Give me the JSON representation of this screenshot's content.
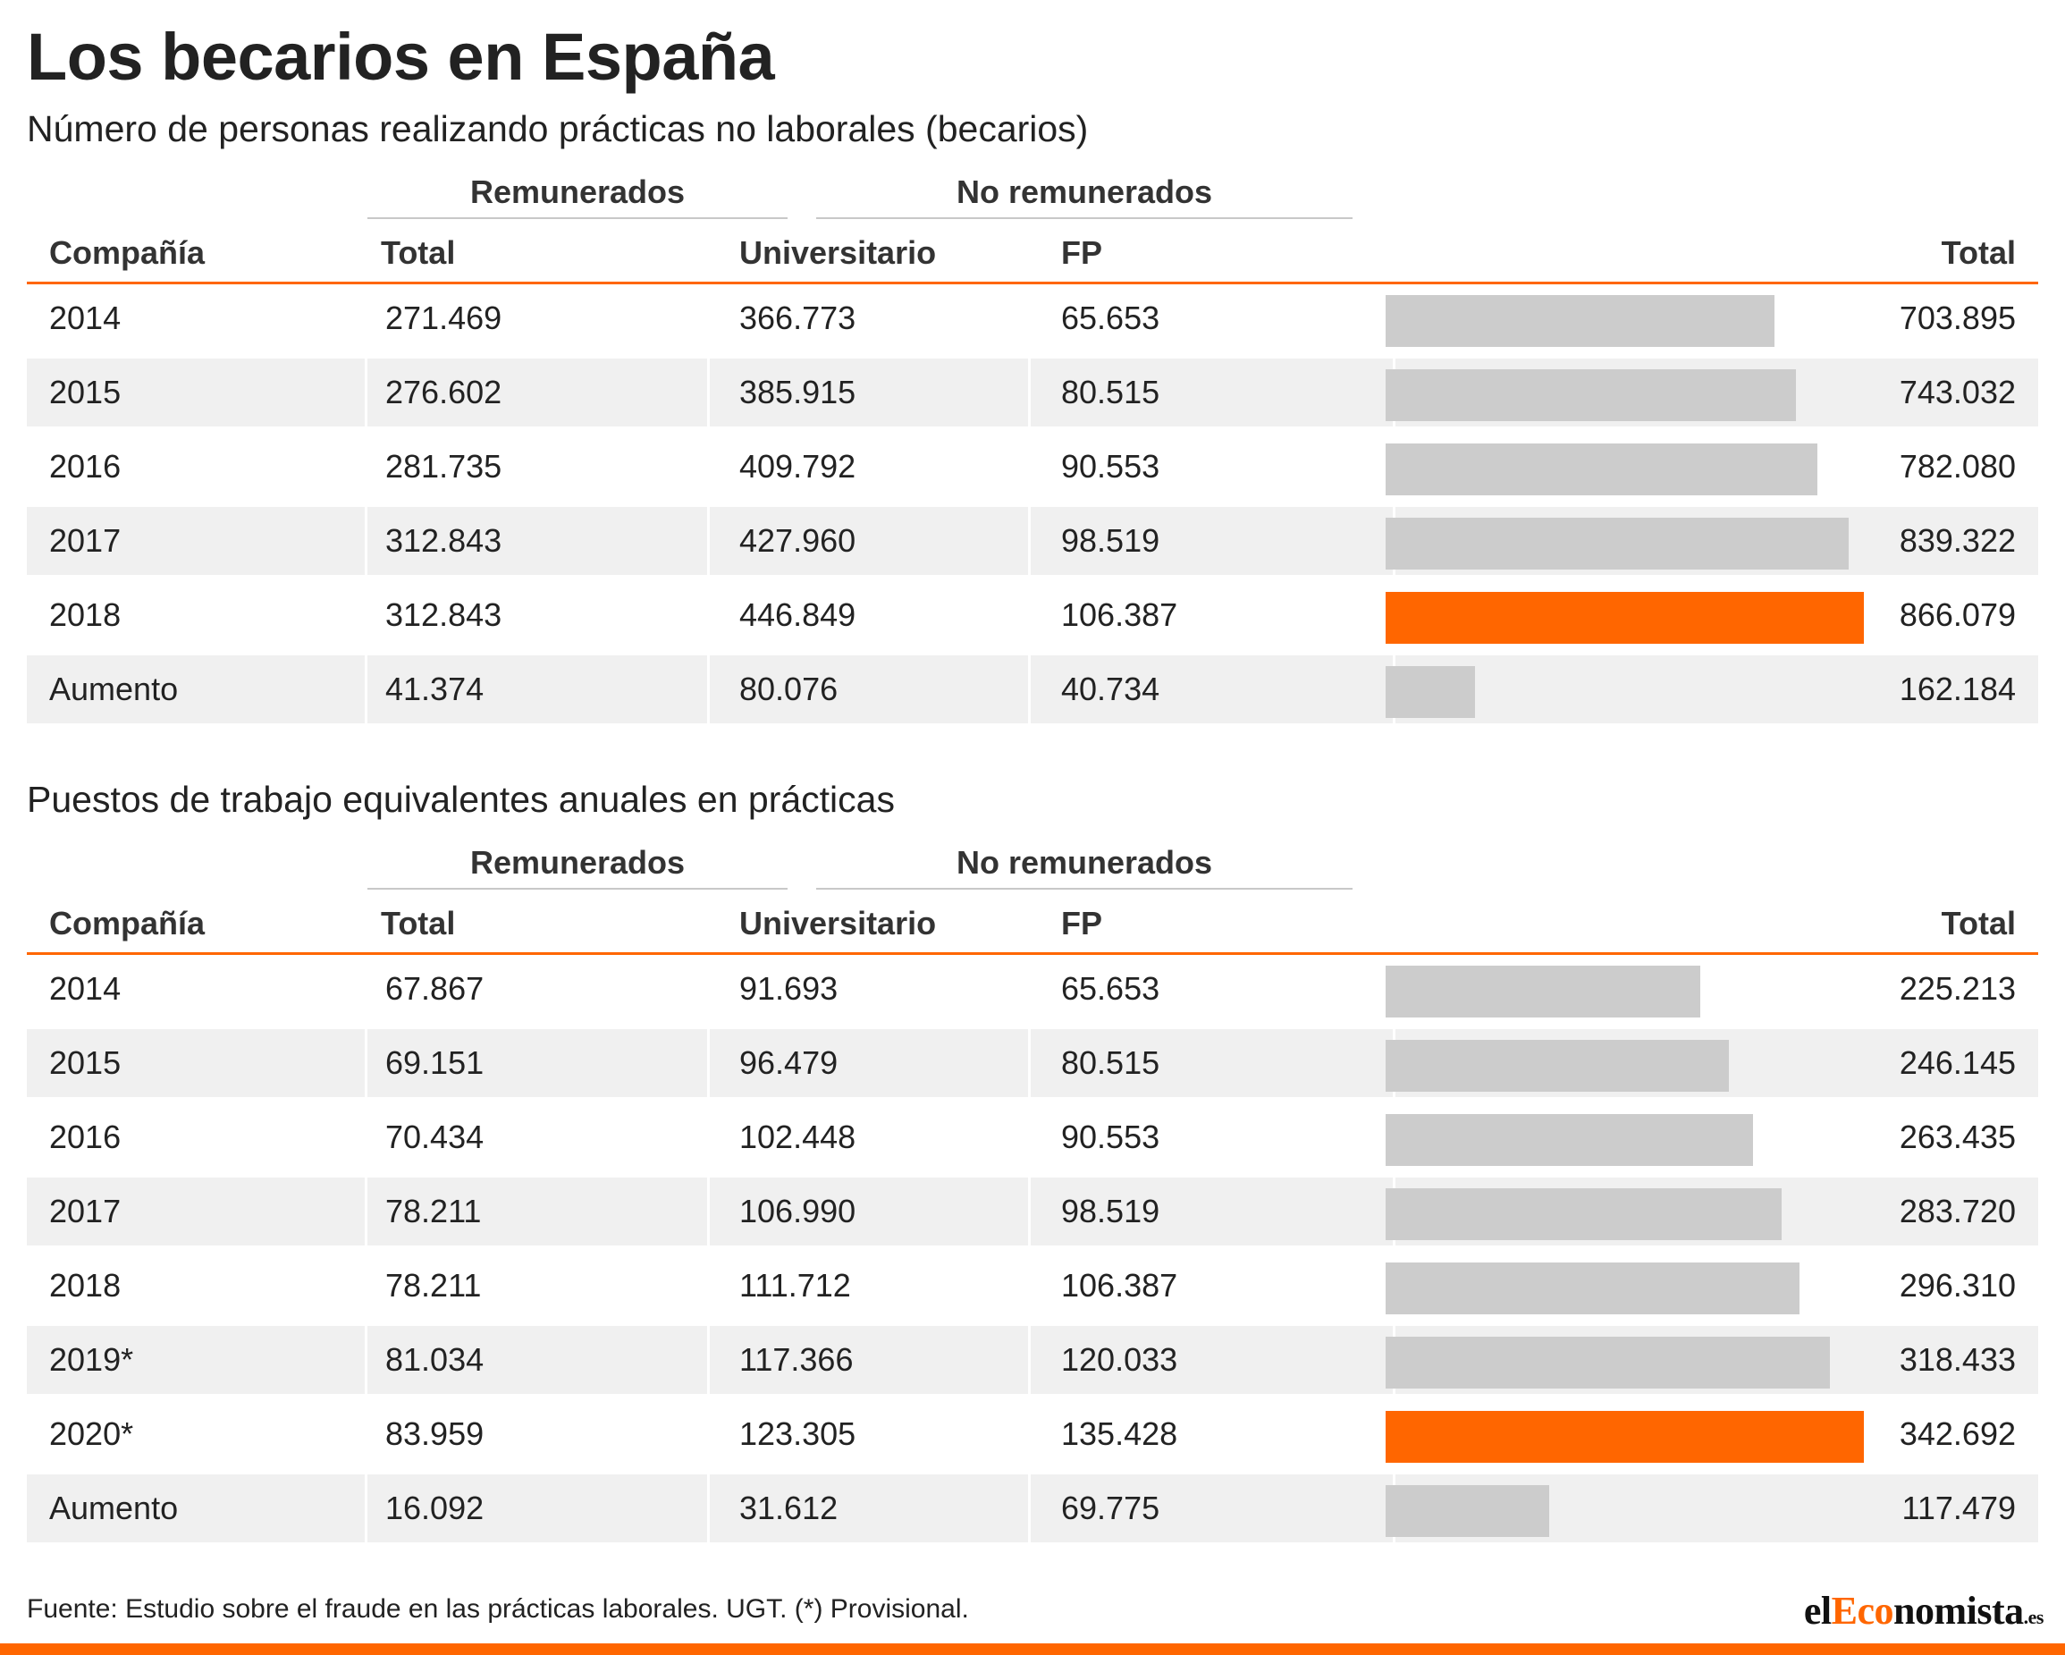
{
  "title": "Los becarios en España",
  "footer": "Fuente: Estudio sobre el fraude en las prácticas laborales. UGT. (*) Provisional.",
  "logo": {
    "prefix": "el",
    "brand": "Eco",
    "suffix": "nomista",
    "tld": ".es"
  },
  "colors": {
    "accent": "#ff6600",
    "bar": "#cccccc",
    "stripe": "#f0f0f0",
    "header_rule": "#ff6600"
  },
  "chart_data": [
    {
      "type": "table",
      "subtitle": "Número de personas realizando prácticas no laborales (becarios)",
      "groups": [
        "Remunerados",
        "No remunerados"
      ],
      "columns": [
        "Compañía",
        "Total",
        "Universitario",
        "FP",
        "Total"
      ],
      "rows": [
        {
          "label": "2014",
          "remunerados_total": "271.469",
          "universitario": "366.773",
          "fp": "65.653",
          "total": "703.895",
          "total_value": 703895,
          "highlight": false
        },
        {
          "label": "2015",
          "remunerados_total": "276.602",
          "universitario": "385.915",
          "fp": "80.515",
          "total": "743.032",
          "total_value": 743032,
          "highlight": false
        },
        {
          "label": "2016",
          "remunerados_total": "281.735",
          "universitario": "409.792",
          "fp": "90.553",
          "total": "782.080",
          "total_value": 782080,
          "highlight": false
        },
        {
          "label": "2017",
          "remunerados_total": "312.843",
          "universitario": "427.960",
          "fp": "98.519",
          "total": "839.322",
          "total_value": 839322,
          "highlight": false
        },
        {
          "label": "2018",
          "remunerados_total": "312.843",
          "universitario": "446.849",
          "fp": "106.387",
          "total": "866.079",
          "total_value": 866079,
          "highlight": true
        },
        {
          "label": "Aumento",
          "remunerados_total": "41.374",
          "universitario": "80.076",
          "fp": "40.734",
          "total": "162.184",
          "total_value": 162184,
          "highlight": false
        }
      ]
    },
    {
      "type": "table",
      "subtitle": "Puestos de trabajo equivalentes anuales en prácticas",
      "groups": [
        "Remunerados",
        "No remunerados"
      ],
      "columns": [
        "Compañía",
        "Total",
        "Universitario",
        "FP",
        "Total"
      ],
      "rows": [
        {
          "label": "2014",
          "remunerados_total": "67.867",
          "universitario": "91.693",
          "fp": "65.653",
          "total": "225.213",
          "total_value": 225213,
          "highlight": false
        },
        {
          "label": "2015",
          "remunerados_total": "69.151",
          "universitario": "96.479",
          "fp": "80.515",
          "total": "246.145",
          "total_value": 246145,
          "highlight": false
        },
        {
          "label": "2016",
          "remunerados_total": "70.434",
          "universitario": "102.448",
          "fp": "90.553",
          "total": "263.435",
          "total_value": 263435,
          "highlight": false
        },
        {
          "label": "2017",
          "remunerados_total": "78.211",
          "universitario": "106.990",
          "fp": "98.519",
          "total": "283.720",
          "total_value": 283720,
          "highlight": false
        },
        {
          "label": "2018",
          "remunerados_total": "78.211",
          "universitario": "111.712",
          "fp": "106.387",
          "total": "296.310",
          "total_value": 296310,
          "highlight": false
        },
        {
          "label": "2019*",
          "remunerados_total": "81.034",
          "universitario": "117.366",
          "fp": "120.033",
          "total": "318.433",
          "total_value": 318433,
          "highlight": false
        },
        {
          "label": "2020*",
          "remunerados_total": "83.959",
          "universitario": "123.305",
          "fp": "135.428",
          "total": "342.692",
          "total_value": 342692,
          "highlight": true
        },
        {
          "label": "Aumento",
          "remunerados_total": "16.092",
          "universitario": "31.612",
          "fp": "69.775",
          "total": "117.479",
          "total_value": 117479,
          "highlight": false
        }
      ]
    }
  ]
}
